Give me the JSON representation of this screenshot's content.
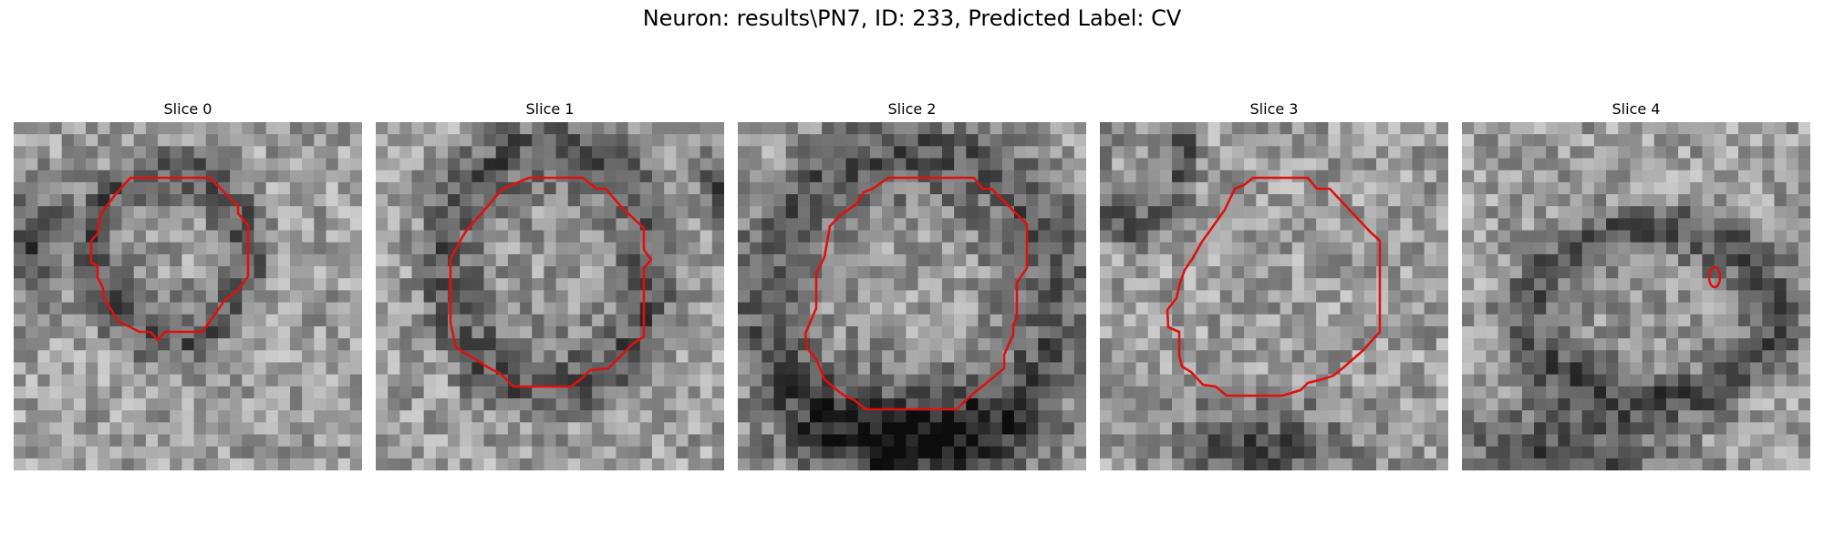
{
  "figure": {
    "title": "Neuron: results\\PN7, ID: 233, Predicted Label: CV"
  },
  "colors": {
    "contour": "#e01010",
    "background": "#ffffff"
  },
  "panels": [
    {
      "title": "Slice 0"
    },
    {
      "title": "Slice 1"
    },
    {
      "title": "Slice 2"
    },
    {
      "title": "Slice 3"
    },
    {
      "title": "Slice 4"
    }
  ]
}
